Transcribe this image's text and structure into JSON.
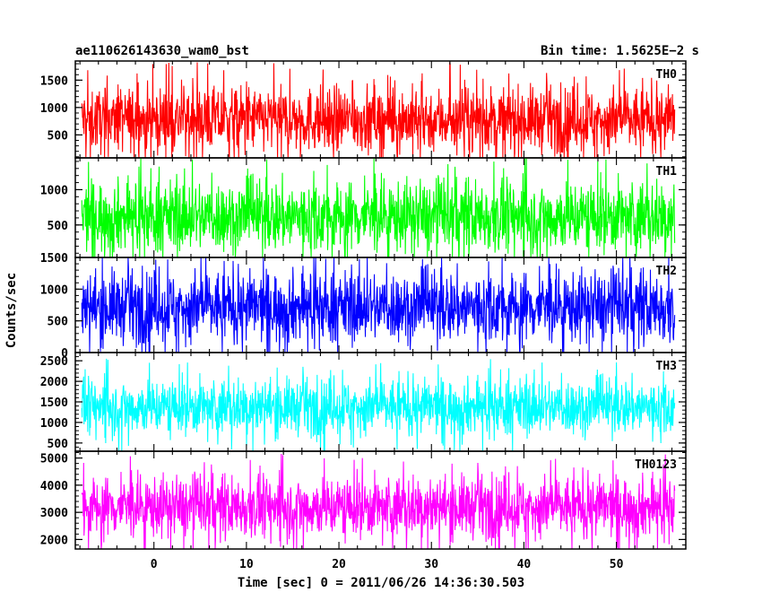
{
  "chart_data": {
    "type": "line",
    "title_left": "ae110626143630_wam0_bst",
    "title_right": "Bin time: 1.5625E−2 s",
    "xlabel": "Time [sec] 0 = 2011/06/26 14:36:30.503",
    "ylabel": "Counts/sec",
    "xlim": [
      -8.5,
      57.5
    ],
    "x_ticks": [
      0,
      10,
      20,
      30,
      40,
      50
    ],
    "x_tick_labels": [
      "0",
      "10",
      "20",
      "30",
      "40",
      "50"
    ],
    "data_x_range": [
      -7.8,
      56.3
    ],
    "bin_time": 0.015625,
    "grid": false,
    "panels": [
      {
        "name": "TH0",
        "color": "#ff0000",
        "ylim": [
          80,
          1850
        ],
        "y_ticks": [
          500,
          1000,
          1500
        ],
        "y_tick_labels": [
          "500",
          "1000",
          "1500"
        ],
        "typical_range": [
          350,
          1400
        ],
        "mean": 780,
        "min_approx": 80,
        "max_approx": 1850
      },
      {
        "name": "TH1",
        "color": "#00ff00",
        "ylim": [
          40,
          1450
        ],
        "y_ticks": [
          500,
          1000
        ],
        "y_tick_labels": [
          "500",
          "1000"
        ],
        "typical_range": [
          200,
          1100
        ],
        "mean": 620,
        "min_approx": 40,
        "max_approx": 1450
      },
      {
        "name": "TH2",
        "color": "#0000ff",
        "ylim": [
          0,
          1500
        ],
        "y_ticks": [
          0,
          500,
          1000,
          1500
        ],
        "y_tick_labels": [
          "0",
          "500",
          "1000",
          "1500"
        ],
        "typical_range": [
          250,
          1250
        ],
        "mean": 720,
        "min_approx": 0,
        "max_approx": 1500
      },
      {
        "name": "TH3",
        "color": "#00ffff",
        "ylim": [
          300,
          2700
        ],
        "y_ticks": [
          500,
          1000,
          1500,
          2000,
          2500
        ],
        "y_tick_labels": [
          "500",
          "1000",
          "1500",
          "2000",
          "2500"
        ],
        "typical_range": [
          800,
          2000
        ],
        "mean": 1380,
        "min_approx": 300,
        "max_approx": 2700
      },
      {
        "name": "TH0123",
        "color": "#ff00ff",
        "ylim": [
          1650,
          5250
        ],
        "y_ticks": [
          2000,
          3000,
          4000,
          5000
        ],
        "y_tick_labels": [
          "2000",
          "3000",
          "4000",
          "5000"
        ],
        "typical_range": [
          2300,
          4300
        ],
        "mean": 3200,
        "min_approx": 1650,
        "max_approx": 5250
      }
    ]
  }
}
